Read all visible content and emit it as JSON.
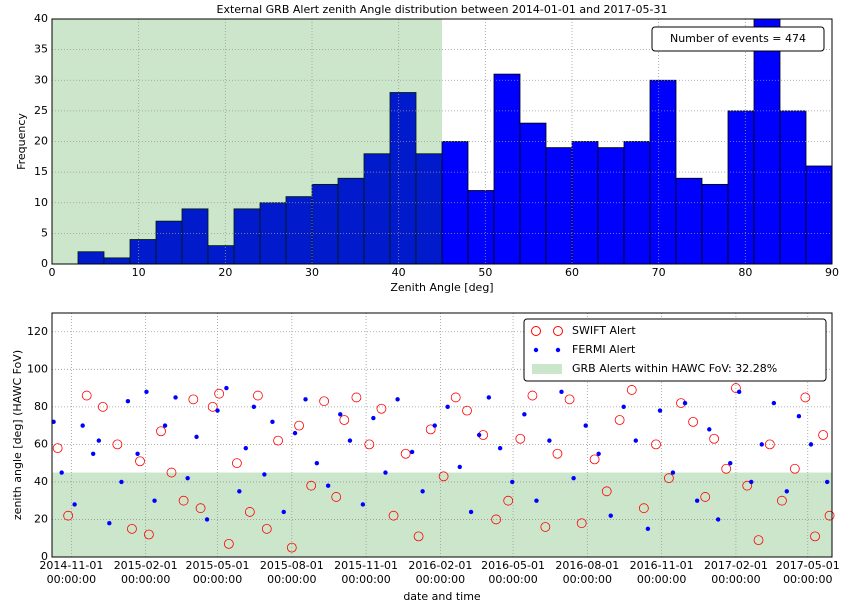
{
  "chart_data": [
    {
      "type": "histogram",
      "title": "External GRB Alert zenith Angle distribution between 2014-01-01 and 2017-05-31",
      "xlabel": "Zenith Angle [deg]",
      "ylabel": "Frequency",
      "bins": [
        0,
        3,
        6,
        9,
        12,
        15,
        18,
        21,
        24,
        27,
        30,
        33,
        36,
        39,
        42,
        45,
        48,
        51,
        54,
        57,
        60,
        63,
        66,
        69,
        72,
        75,
        78,
        81,
        84,
        87,
        90
      ],
      "values": [
        0,
        2,
        1,
        4,
        7,
        9,
        3,
        9,
        10,
        11,
        13,
        14,
        18,
        28,
        18,
        20,
        12,
        31,
        23,
        19,
        20,
        19,
        20,
        30,
        14,
        13,
        25,
        40,
        25,
        16
      ],
      "color": "#0000ff",
      "span": [
        0,
        45
      ],
      "span_color": "#008000",
      "annotation": "Number of events = 474",
      "xlim": [
        0,
        90
      ],
      "xticks": [
        0,
        10,
        20,
        30,
        40,
        50,
        60,
        70,
        80,
        90
      ],
      "ylim": [
        0,
        40
      ],
      "yticks": [
        0,
        5,
        10,
        15,
        20,
        25,
        30,
        35,
        40
      ],
      "grid": true
    },
    {
      "type": "scatter",
      "xlabel": "date and time",
      "ylabel": "zenith angle [deg] (HAWC FoV)",
      "span": [
        0,
        45
      ],
      "span_color": "#008000",
      "span_name": "GRB Alerts within HAWC FoV: 32.28%",
      "legend": "upper right",
      "grid": true,
      "xlim": [
        "2014-10-08",
        "2017-05-31"
      ],
      "xticks": [
        {
          "value": "2014-11-01",
          "label": "2014-11-01 00:00:00"
        },
        {
          "value": "2015-02-01",
          "label": "2015-02-01 00:00:00"
        },
        {
          "value": "2015-05-01",
          "label": "2015-05-01 00:00:00"
        },
        {
          "value": "2015-08-01",
          "label": "2015-08-01 00:00:00"
        },
        {
          "value": "2015-11-01",
          "label": "2015-11-01 00:00:00"
        },
        {
          "value": "2016-02-01",
          "label": "2016-02-01 00:00:00"
        },
        {
          "value": "2016-05-01",
          "label": "2016-05-01 00:00:00"
        },
        {
          "value": "2016-08-01",
          "label": "2016-08-01 00:00:00"
        },
        {
          "value": "2016-11-01",
          "label": "2016-11-01 00:00:00"
        },
        {
          "value": "2017-02-01",
          "label": "2017-02-01 00:00:00"
        },
        {
          "value": "2017-05-01",
          "label": "2017-05-01 00:00:00"
        }
      ],
      "ylim": [
        0,
        130
      ],
      "yticks": [
        0,
        20,
        40,
        60,
        80,
        100,
        120
      ],
      "series": [
        {
          "name": "SWIFT Alert",
          "color": "#ff0000",
          "marker": "open-circle",
          "x": [
            "2014-10-15",
            "2014-10-28",
            "2014-11-20",
            "2014-12-10",
            "2014-12-28",
            "2015-01-15",
            "2015-01-25",
            "2015-02-05",
            "2015-02-20",
            "2015-03-05",
            "2015-03-20",
            "2015-04-01",
            "2015-04-10",
            "2015-04-25",
            "2015-05-03",
            "2015-05-15",
            "2015-05-25",
            "2015-06-10",
            "2015-06-20",
            "2015-07-01",
            "2015-07-15",
            "2015-08-01",
            "2015-08-10",
            "2015-08-25",
            "2015-09-10",
            "2015-09-25",
            "2015-10-05",
            "2015-10-20",
            "2015-11-05",
            "2015-11-20",
            "2015-12-05",
            "2015-12-20",
            "2016-01-05",
            "2016-01-20",
            "2016-02-05",
            "2016-02-20",
            "2016-03-05",
            "2016-03-25",
            "2016-04-10",
            "2016-04-25",
            "2016-05-10",
            "2016-05-25",
            "2016-06-10",
            "2016-06-25",
            "2016-07-10",
            "2016-07-25",
            "2016-08-10",
            "2016-08-25",
            "2016-09-10",
            "2016-09-25",
            "2016-10-10",
            "2016-10-25",
            "2016-11-10",
            "2016-11-25",
            "2016-12-10",
            "2016-12-25",
            "2017-01-05",
            "2017-01-20",
            "2017-02-01",
            "2017-02-15",
            "2017-03-01",
            "2017-03-15",
            "2017-03-30",
            "2017-04-15",
            "2017-04-28",
            "2017-05-10",
            "2017-05-20",
            "2017-05-28"
          ],
          "values": [
            58,
            22,
            86,
            80,
            60,
            15,
            51,
            12,
            67,
            45,
            30,
            84,
            26,
            80,
            87,
            7,
            50,
            24,
            86,
            15,
            62,
            5,
            70,
            38,
            83,
            32,
            73,
            85,
            60,
            79,
            22,
            55,
            11,
            68,
            43,
            85,
            78,
            65,
            20,
            30,
            63,
            86,
            16,
            55,
            84,
            18,
            52,
            35,
            73,
            89,
            26,
            60,
            42,
            82,
            72,
            32,
            63,
            47,
            90,
            38,
            9,
            60,
            30,
            47,
            85,
            11,
            65,
            22
          ]
        },
        {
          "name": "FERMI Alert",
          "color": "#0000ff",
          "marker": "dot",
          "x": [
            "2014-10-10",
            "2014-10-20",
            "2014-11-05",
            "2014-11-15",
            "2014-11-28",
            "2014-12-05",
            "2014-12-18",
            "2015-01-02",
            "2015-01-10",
            "2015-01-22",
            "2015-02-02",
            "2015-02-12",
            "2015-02-25",
            "2015-03-10",
            "2015-03-25",
            "2015-04-05",
            "2015-04-18",
            "2015-05-01",
            "2015-05-12",
            "2015-05-28",
            "2015-06-05",
            "2015-06-15",
            "2015-06-28",
            "2015-07-08",
            "2015-07-22",
            "2015-08-05",
            "2015-08-18",
            "2015-09-01",
            "2015-09-15",
            "2015-09-30",
            "2015-10-12",
            "2015-10-28",
            "2015-11-10",
            "2015-11-25",
            "2015-12-10",
            "2015-12-28",
            "2016-01-10",
            "2016-01-25",
            "2016-02-10",
            "2016-02-25",
            "2016-03-10",
            "2016-03-20",
            "2016-04-01",
            "2016-04-15",
            "2016-04-30",
            "2016-05-15",
            "2016-05-30",
            "2016-06-15",
            "2016-06-30",
            "2016-07-15",
            "2016-07-30",
            "2016-08-15",
            "2016-08-30",
            "2016-09-15",
            "2016-09-30",
            "2016-10-15",
            "2016-10-30",
            "2016-11-15",
            "2016-11-30",
            "2016-12-15",
            "2016-12-30",
            "2017-01-10",
            "2017-01-25",
            "2017-02-05",
            "2017-02-20",
            "2017-03-05",
            "2017-03-20",
            "2017-04-05",
            "2017-04-20",
            "2017-05-05",
            "2017-05-25"
          ],
          "values": [
            72,
            45,
            28,
            70,
            55,
            62,
            18,
            40,
            83,
            55,
            88,
            30,
            70,
            85,
            42,
            64,
            20,
            78,
            90,
            35,
            58,
            80,
            44,
            72,
            24,
            66,
            84,
            50,
            38,
            76,
            62,
            28,
            74,
            45,
            84,
            56,
            35,
            70,
            80,
            48,
            24,
            65,
            85,
            58,
            40,
            76,
            30,
            62,
            88,
            42,
            70,
            55,
            22,
            80,
            62,
            15,
            78,
            45,
            82,
            30,
            68,
            20,
            50,
            88,
            40,
            60,
            82,
            35,
            75,
            60,
            40
          ]
        }
      ]
    }
  ]
}
